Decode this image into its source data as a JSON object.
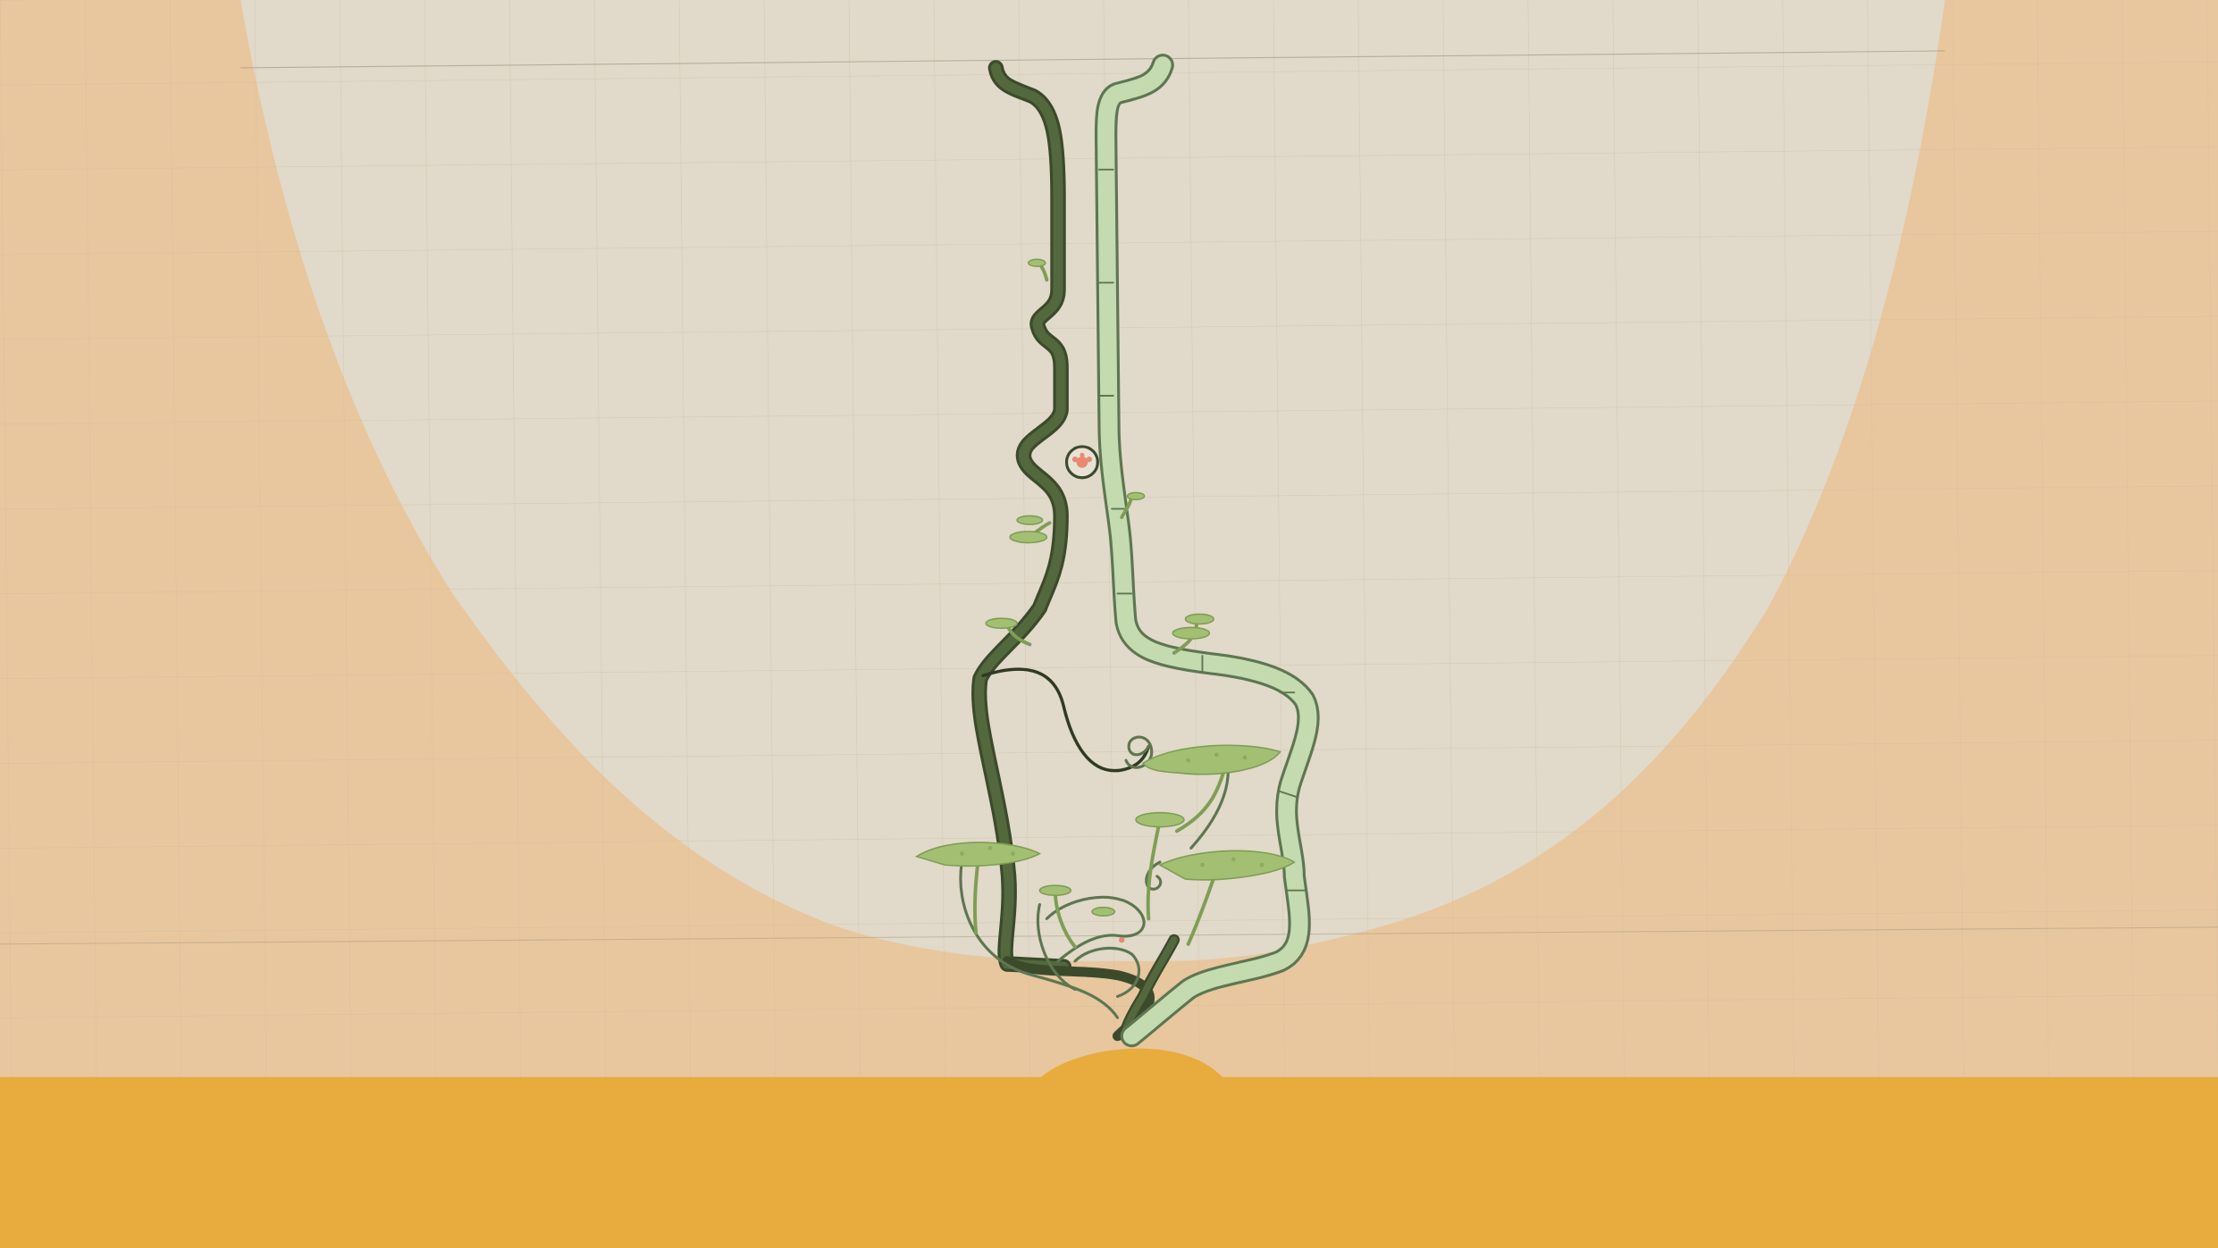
{
  "scene": {
    "kind": "plant-growing-puzzle-level",
    "hud_text": []
  },
  "palette": {
    "background_orange": "#e8c79e",
    "sky_dome": "#e1d9c9",
    "ground": "#e8ab3e",
    "vine_dark": "#53683d",
    "vine_dark_outline": "#3c4a2c",
    "vine_light": "#c4dbb0",
    "vine_light_outline": "#5e7651",
    "leaf_pad": "#a3bf72",
    "leaf_pad_shade": "#7f9e55",
    "seed_marker": "#e88a73",
    "grid_line": "#c8b59d"
  },
  "elements": [
    {
      "name": "sky-dome",
      "type": "arena"
    },
    {
      "name": "ground-plane",
      "type": "terrain"
    },
    {
      "name": "ground-mound",
      "type": "terrain"
    },
    {
      "name": "dark-vine",
      "type": "plant-stem"
    },
    {
      "name": "light-vine",
      "type": "plant-stem"
    },
    {
      "name": "leaf-pads",
      "type": "platforms"
    },
    {
      "name": "seed-pod",
      "type": "collectible"
    },
    {
      "name": "spiral-tendrils",
      "type": "decoration"
    }
  ]
}
